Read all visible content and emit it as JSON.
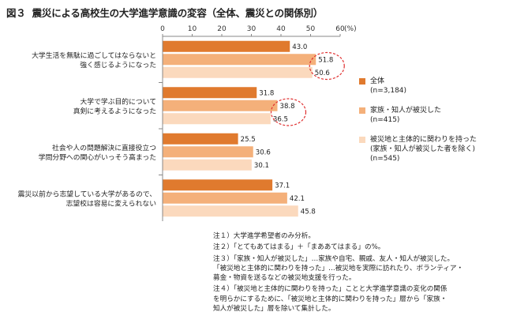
{
  "header": {
    "figure_label": "図３",
    "title": "震災による高校生の大学進学意識の変容（全体、震災との関係別）"
  },
  "chart_data": {
    "type": "bar",
    "orientation": "horizontal",
    "x_ticks": [
      "0",
      "10",
      "20",
      "30",
      "40",
      "50",
      "60"
    ],
    "x_unit": "(%)",
    "xlim": [
      0,
      60
    ],
    "grid": false,
    "legend_position": "right",
    "categories": [
      [
        "大学生活を無駄に過ごしてはならないと",
        "強く感じるようになった"
      ],
      [
        "大学で学ぶ目的について",
        "真剣に考えるようになった"
      ],
      [
        "社会や人の問題解決に直接役立つ",
        "学問分野への関心がいっそう高まった"
      ],
      [
        "震災以前から志望している大学があるので、",
        "志望校は容易に変えられない"
      ]
    ],
    "series": [
      {
        "name": "全体",
        "count": "(n=3,184)",
        "color": "#e07a2e",
        "values": [
          43.0,
          31.8,
          25.5,
          37.1
        ],
        "labels": [
          "43.0",
          "31.8",
          "25.5",
          "37.1"
        ]
      },
      {
        "name": "家族・知人が被災した",
        "count": "(n=415)",
        "color": "#f4b07a",
        "values": [
          51.8,
          38.8,
          30.6,
          42.1
        ],
        "labels": [
          "51.8",
          "38.8",
          "30.6",
          "42.1"
        ]
      },
      {
        "name": "被災地と主体的に関わりを持った",
        "name2": "(家族・知人が被災した者を除く)",
        "count": "(n=545)",
        "color": "#fbd9bd",
        "values": [
          50.6,
          36.5,
          30.1,
          45.8
        ],
        "labels": [
          "50.6",
          "36.5",
          "30.1",
          "45.8"
        ]
      }
    ],
    "highlights": [
      {
        "category_index": 0
      },
      {
        "category_index": 1
      }
    ]
  },
  "notes": [
    "注１）大学進学希望者のみ分析。",
    "注２）「とてもあてはまる」＋「まああてはまる」の%。",
    "注３）「家族・知人が被災した」…家族や自宅、親戚、友人・知人が被災した。",
    "「被災地と主体的に関わりを持った」…被災地を実際に訪れたり、ボランティア・",
    "募金・物資を送るなどの被災地支援を行った。",
    "注４）「被災地と主体的に関わりを持った」ことと大学進学意識の変化の関係",
    "を明らかにするために、「被災地と主体的に関わりを持った」層から「家族・",
    "知人が被災した」層を除いて集計した。"
  ]
}
